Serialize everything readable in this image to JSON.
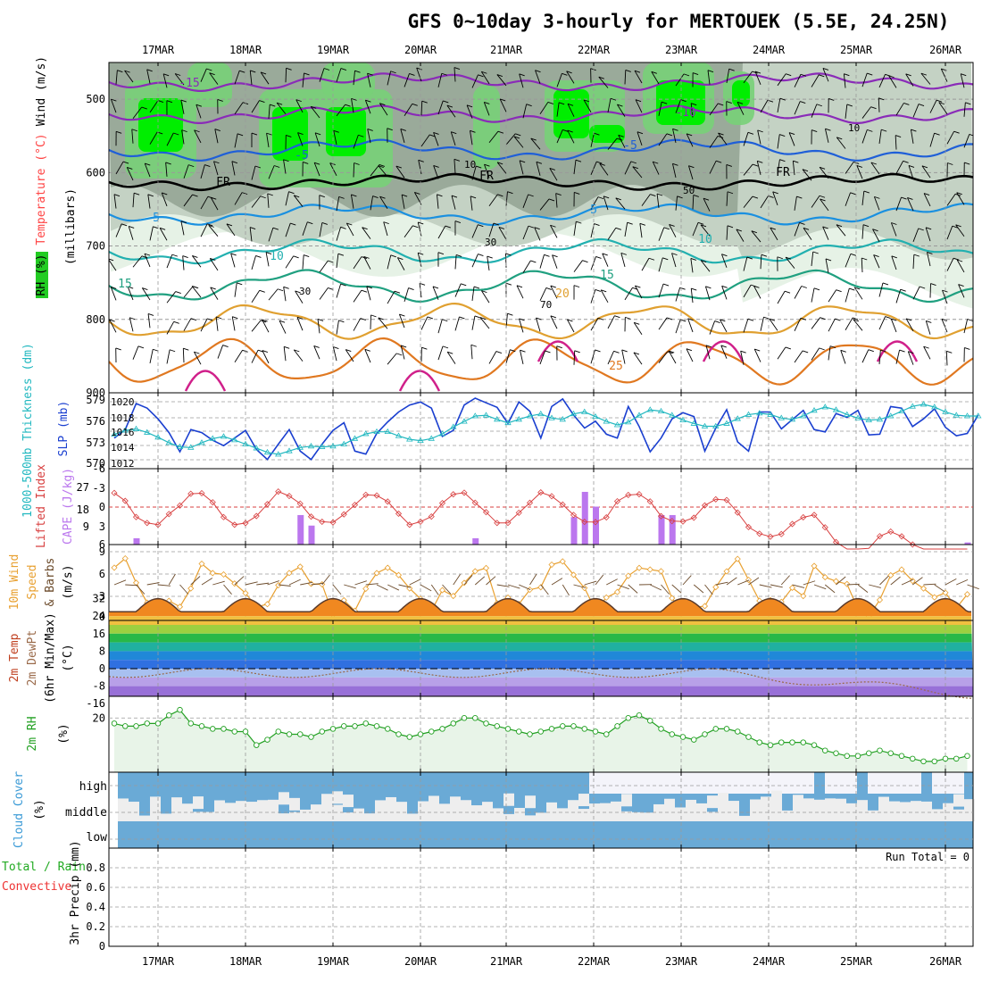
{
  "title": "GFS 0~10day 3-hourly for MERTOUEK (5.5E, 24.25N)",
  "dates": [
    "17MAR",
    "18MAR",
    "19MAR",
    "20MAR",
    "21MAR",
    "22MAR",
    "23MAR",
    "24MAR",
    "25MAR",
    "26MAR"
  ],
  "colors": {
    "rh_dark": "#9aaa9a",
    "rh_mid": "#c4d2c4",
    "rh_light": "#e6f2e6",
    "rh_green": "#78d078",
    "rh_bright": "#00ee00",
    "slp": "#1a3fd0",
    "thickness": "#22b8c0",
    "lifted": "#d84040",
    "cape": "#bb77ee",
    "wind_speed": "#e8a030",
    "barbs": "#6b4a2a",
    "dewpoint": "#9a6a4a",
    "rh2m": "#22a022",
    "rh2m_fill": "#e8f4e8",
    "cloud": "#6aaad6",
    "cloud_clear": "#eeeeee",
    "cloud_high_clear": "#f4f4fa"
  },
  "panels": {
    "upper": {
      "label_rh": "RH (%)",
      "label_temperature": "Temperature (°C)",
      "label_wind": "Wind (m/s)",
      "label_pressure": "(millibars)",
      "pressure_ticks": [
        "500",
        "600",
        "700",
        "800",
        "900"
      ],
      "isotherm_labels": [
        "-15",
        "-10",
        "-5",
        "-5",
        "FR",
        "FR",
        "FR",
        "5",
        "5",
        "10",
        "10",
        "15",
        "15",
        "20",
        "25"
      ],
      "rh_labels": [
        "10",
        "10",
        "30",
        "30",
        "50",
        "70"
      ]
    },
    "slp": {
      "label_thickness": "1000-500mb Thickness (dm)",
      "label_slp": "SLP (mb)",
      "left_ticks": [
        "579",
        "576",
        "573",
        "570"
      ],
      "right_ticks": [
        "1020",
        "1018",
        "1016",
        "1014",
        "1012"
      ]
    },
    "cape": {
      "label_lifted": "Lifted Index",
      "label_cape": "CAPE (J/kg)",
      "left_ticks": [
        "-6",
        "-3",
        "0",
        "3",
        "6"
      ],
      "right_ticks": [
        "27",
        "18",
        "9"
      ]
    },
    "wind10m": {
      "label_a": "10m Wind",
      "label_b": "Speed",
      "label_c": "& Barbs",
      "label_units": "(m/s)",
      "ticks": [
        "9",
        "6",
        "3",
        "0"
      ]
    },
    "temp2m": {
      "label_a": "2m Temp",
      "label_b": "2m DewPt",
      "label_c": "(6hr Min/Max)",
      "label_units": "(°C)",
      "ticks": [
        "32",
        "24",
        "16",
        "8",
        "0",
        "-8",
        "-16"
      ]
    },
    "rh2m": {
      "label": "2m RH",
      "label_units": "(%)",
      "ticks": [
        "20"
      ]
    },
    "cloud": {
      "label": "Cloud Cover",
      "label_units": "(%)",
      "levels": [
        "high",
        "middle",
        "low"
      ]
    },
    "precip": {
      "label_a": "Total / Rain",
      "label_b": "Convective",
      "label_units": "3hr Precip (mm)",
      "run_total": "Run Total = 0",
      "ticks": [
        "0.8",
        "0.6",
        "0.4",
        "0.2",
        "0"
      ]
    }
  },
  "chart_data": [
    {
      "type": "line",
      "title": "1000-500mb Thickness (dm) / SLP (mb)",
      "x": [
        0,
        3,
        6,
        9,
        12,
        15,
        18,
        21,
        24,
        27,
        30,
        33,
        36,
        39,
        42,
        45,
        48,
        51,
        54,
        57,
        60,
        63,
        66,
        69,
        72,
        75,
        78,
        81,
        84,
        87,
        90,
        93,
        96,
        99,
        102,
        105,
        108,
        111,
        114,
        117,
        120,
        123,
        126,
        129,
        132,
        135,
        138,
        141,
        144,
        147,
        150,
        153,
        156,
        159,
        162,
        165,
        168,
        171,
        174,
        177,
        180,
        183,
        186,
        189,
        192,
        195,
        198,
        201,
        204,
        207,
        210,
        213,
        216,
        219,
        222,
        225,
        228,
        231,
        234,
        237
      ],
      "series": [
        {
          "name": "SLP (mb)",
          "values": [
            1015.3,
            1016.4,
            1019.8,
            1019.2,
            1017.8,
            1016.0,
            1013.5,
            1016.4,
            1016.0,
            1015.0,
            1014.3,
            1015.3,
            1016.3,
            1013.8,
            1012.5,
            1014.5,
            1016.4,
            1013.6,
            1012.5,
            1014.5,
            1016.3,
            1017.3,
            1013.6,
            1013.2,
            1015.9,
            1017.4,
            1018.7,
            1019.6,
            1020.0,
            1019.2,
            1015.5,
            1016.3,
            1019.6,
            1020.5,
            1019.9,
            1019.3,
            1017.2,
            1020.0,
            1018.8,
            1015.3,
            1019.4,
            1020.4,
            1018.3,
            1016.6,
            1017.5,
            1015.8,
            1015.3,
            1019.4,
            1016.8,
            1013.5,
            1015.3,
            1017.8,
            1018.6,
            1018.1,
            1013.6,
            1016.6,
            1019.0,
            1014.8,
            1013.6,
            1018.7,
            1018.7,
            1016.5,
            1017.7,
            1018.9,
            1016.4,
            1016.1,
            1018.5,
            1018.0,
            1018.9,
            1015.7,
            1015.8,
            1019.4,
            1019.2,
            1016.8,
            1017.8,
            1019.1,
            1016.7,
            1015.6,
            1015.9,
            1018.3
          ]
        },
        {
          "name": "1000-500mb Thickness (dm)",
          "values": [
            574.2,
            574.8,
            575.0,
            574.5,
            573.8,
            573.0,
            572.4,
            572.3,
            573.0,
            573.6,
            573.9,
            573.4,
            572.8,
            572.2,
            571.6,
            571.3,
            571.8,
            572.3,
            572.5,
            572.4,
            572.5,
            572.8,
            573.6,
            574.3,
            574.6,
            574.6,
            574.0,
            573.5,
            573.3,
            573.6,
            574.3,
            575.3,
            576.1,
            576.9,
            577.0,
            576.4,
            575.9,
            576.4,
            576.9,
            577.2,
            576.6,
            576.4,
            577.2,
            577.5,
            576.8,
            576.1,
            575.6,
            576.0,
            577.0,
            577.8,
            577.6,
            577.0,
            576.3,
            575.8,
            575.4,
            575.4,
            575.8,
            576.5,
            577.1,
            577.3,
            577.1,
            576.6,
            576.4,
            576.9,
            577.7,
            578.2,
            577.8,
            577.1,
            576.6,
            576.3,
            576.4,
            576.9,
            577.6,
            578.3,
            578.6,
            578.2,
            577.5,
            577.0,
            576.9,
            576.9
          ]
        }
      ]
    },
    {
      "type": "line",
      "title": "2m RH",
      "ylabel": "(%)",
      "x": [
        0,
        3,
        6,
        9,
        12,
        15,
        18,
        21,
        24,
        27,
        30,
        33,
        36,
        39,
        42,
        45,
        48,
        51,
        54,
        57,
        60,
        63,
        66,
        69,
        72,
        75,
        78,
        81,
        84,
        87,
        90,
        93,
        96,
        99,
        102,
        105,
        108,
        111,
        114,
        117,
        120,
        123,
        126,
        129,
        132,
        135,
        138,
        141,
        144,
        147,
        150,
        153,
        156,
        159,
        162,
        165,
        168,
        171,
        174,
        177,
        180,
        183,
        186,
        189,
        192,
        195,
        198,
        201,
        204,
        207,
        210,
        213,
        216,
        219,
        222,
        225,
        228,
        231,
        234,
        237
      ],
      "series": [
        {
          "name": "2m RH",
          "values": [
            18,
            17,
            17,
            18,
            18,
            21,
            23,
            18,
            17,
            16,
            16,
            15,
            15,
            10,
            12,
            15,
            14,
            14,
            13,
            15,
            16,
            17,
            17,
            18,
            17,
            16,
            14,
            13,
            14,
            15,
            16,
            18,
            20,
            20,
            18,
            17,
            16,
            15,
            14,
            15,
            16,
            17,
            17,
            16,
            15,
            14,
            17,
            20,
            21,
            19,
            16,
            14,
            13,
            12,
            14,
            16,
            16,
            15,
            13,
            11,
            10,
            11,
            11,
            11,
            10,
            8,
            7,
            6,
            6,
            7,
            8,
            7,
            6,
            5,
            4,
            4,
            5,
            5,
            6,
            7
          ]
        }
      ]
    },
    {
      "type": "bar",
      "title": "CAPE (J/kg)",
      "ylabel": "CAPE (J/kg)",
      "ylim": [
        0,
        36
      ],
      "x": [
        6,
        51,
        54,
        99,
        126,
        129,
        132,
        150,
        153,
        234
      ],
      "values": [
        3,
        14,
        9,
        3,
        13,
        25,
        18,
        14,
        14,
        1
      ]
    }
  ]
}
